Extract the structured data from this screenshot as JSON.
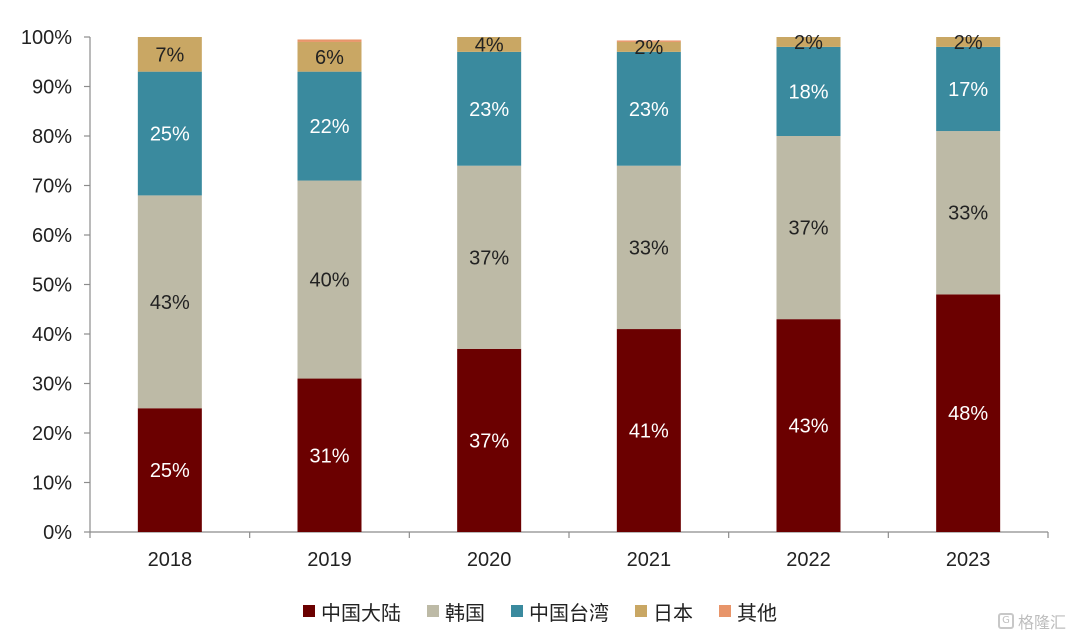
{
  "chart_data": {
    "type": "bar",
    "stacked": true,
    "categories": [
      "2018",
      "2019",
      "2020",
      "2021",
      "2022",
      "2023"
    ],
    "series": [
      {
        "name": "中国大陆",
        "color": "#6b0000",
        "values": [
          25,
          31,
          37,
          41,
          43,
          48
        ],
        "labels": [
          "25%",
          "31%",
          "37%",
          "41%",
          "43%",
          "48%"
        ],
        "label_color": "#ffffff"
      },
      {
        "name": "韩国",
        "color": "#bdbaa6",
        "values": [
          43,
          40,
          37,
          33,
          37,
          33
        ],
        "labels": [
          "43%",
          "40%",
          "37%",
          "33%",
          "37%",
          "33%"
        ],
        "label_color": "#222222"
      },
      {
        "name": "中国台湾",
        "color": "#3a8a9e",
        "values": [
          25,
          22,
          23,
          23,
          18,
          17
        ],
        "labels": [
          "25%",
          "22%",
          "23%",
          "23%",
          "18%",
          "17%"
        ],
        "label_color": "#ffffff"
      },
      {
        "name": "日本",
        "color": "#c9a764",
        "values": [
          7,
          6,
          4,
          2,
          2,
          2
        ],
        "labels": [
          "7%",
          "6%",
          "4%",
          "2%",
          "2%",
          "2%"
        ],
        "label_color": "#222222"
      },
      {
        "name": "其他",
        "color": "#e8956a",
        "values": [
          1,
          0.5,
          0.3,
          0.3,
          0.3,
          0.3
        ],
        "labels": [],
        "label_color": "#222222"
      }
    ],
    "ylim": [
      0,
      100
    ],
    "yticks": [
      "0%",
      "10%",
      "20%",
      "30%",
      "40%",
      "50%",
      "60%",
      "70%",
      "80%",
      "90%",
      "100%"
    ],
    "legend_position": "bottom",
    "grid": false
  },
  "watermark": {
    "text": "格隆汇",
    "icon": "G"
  }
}
